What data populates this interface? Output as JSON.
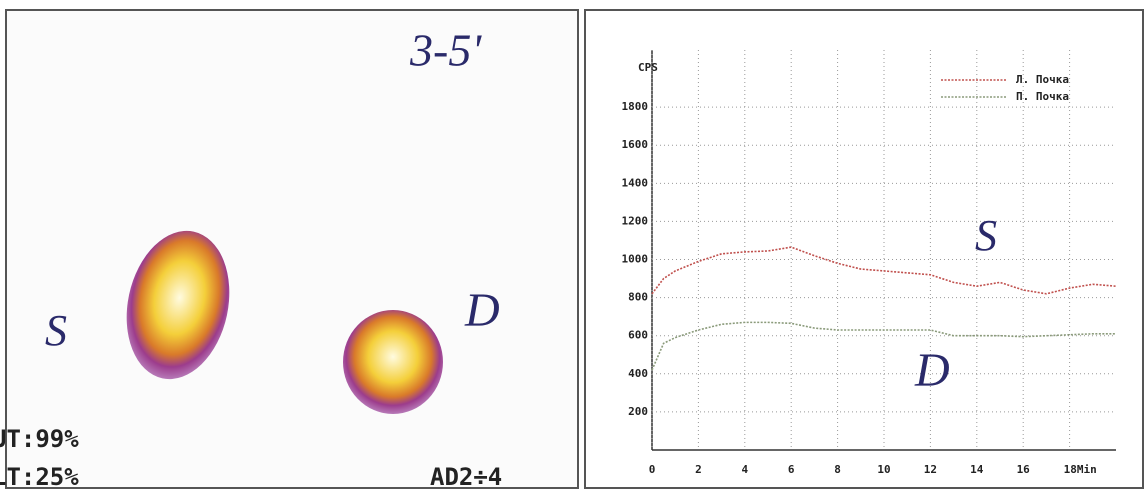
{
  "image": {
    "annotations": [
      "3-5'",
      "S",
      "D"
    ],
    "labels": [
      "UT:99%",
      "LT:25%",
      "AD2÷4"
    ]
  },
  "chart_data": {
    "type": "line",
    "y_label": "CPS",
    "annotations": [
      "S",
      "D"
    ],
    "x": [
      0,
      0.5,
      1,
      2,
      3,
      4,
      5,
      6,
      7,
      8,
      9,
      10,
      11,
      12,
      13,
      14,
      15,
      16,
      17,
      18,
      19,
      20
    ],
    "series": [
      {
        "name": "Л. Почка",
        "color": "#c0504d",
        "values": [
          820,
          900,
          940,
          990,
          1030,
          1040,
          1045,
          1065,
          1020,
          980,
          950,
          940,
          930,
          920,
          880,
          860,
          880,
          840,
          820,
          850,
          870,
          860
        ]
      },
      {
        "name": "П. Почка",
        "color": "#8a9a7a",
        "values": [
          420,
          560,
          590,
          630,
          660,
          670,
          670,
          665,
          640,
          630,
          630,
          630,
          630,
          630,
          600,
          600,
          600,
          595,
          600,
          605,
          610,
          610
        ]
      }
    ],
    "xlim": [
      0,
      20
    ],
    "xticks": [
      0,
      2,
      4,
      6,
      8,
      10,
      12,
      14,
      16,
      {
        "value": 18,
        "label": "18Min"
      }
    ],
    "ylim": [
      0,
      2100
    ],
    "yticks": [
      200,
      400,
      600,
      800,
      1000,
      1200,
      1400,
      1600,
      1800
    ],
    "grid": true,
    "legend": "top-right"
  }
}
